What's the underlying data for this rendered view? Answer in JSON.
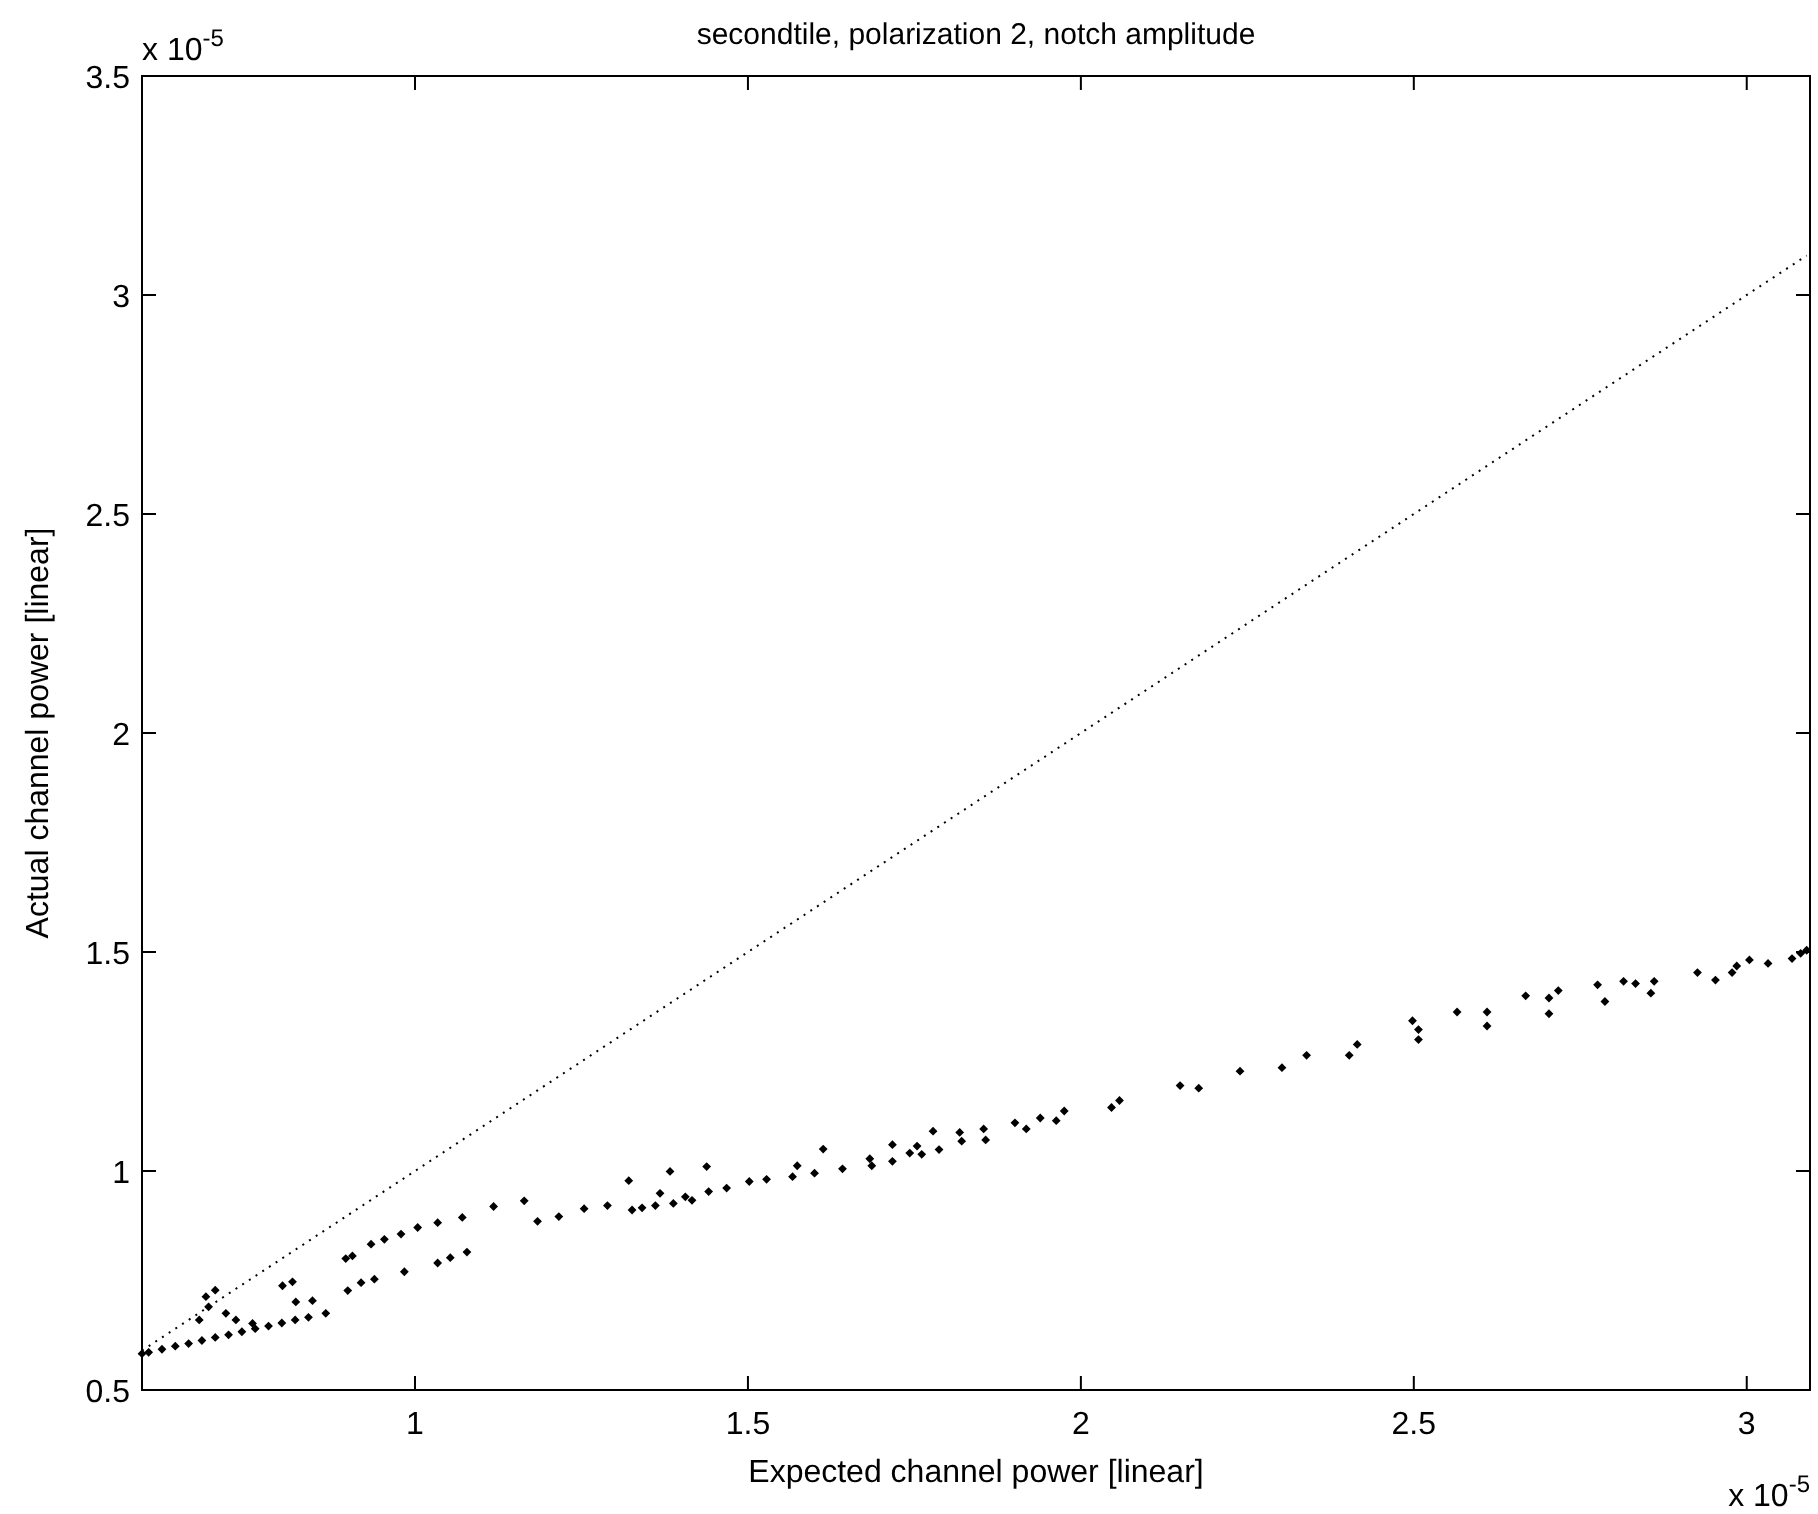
{
  "chart_data": {
    "type": "scatter",
    "title": "secondtile, polarization 2, notch amplitude",
    "xlabel": "Expected channel power [linear]",
    "ylabel": "Actual channel power [linear]",
    "annotations": [
      "x 10$^{-5}$",
      "x 10$^{-5}$"
    ],
    "xlim": [
      0.59,
      3.095
    ],
    "xticks": [
      1,
      1.5,
      2,
      2.5,
      3
    ],
    "ylim": [
      0.5,
      3.5
    ],
    "yticks": [
      0.5,
      1,
      1.5,
      2,
      2.5,
      3,
      3.5
    ],
    "grid": false,
    "series": [
      {
        "color": "#000000",
        "marker": "diamond",
        "x": [
          0.59,
          0.6,
          0.62,
          0.64,
          0.66,
          0.68,
          0.7,
          0.72,
          0.74,
          0.76,
          0.78,
          0.8,
          0.82,
          0.84,
          0.866,
          0.676,
          0.686,
          0.69,
          0.7,
          0.716,
          0.731,
          0.756,
          0.801,
          0.816,
          0.821,
          0.846,
          0.899,
          0.919,
          0.939,
          0.896,
          0.906,
          0.934,
          0.954,
          0.979,
          1.004,
          1.034,
          1.071,
          0.984,
          1.034,
          1.053,
          1.078,
          1.118,
          1.164,
          1.184,
          1.216,
          1.254,
          1.289,
          1.321,
          1.326,
          1.341,
          1.361,
          1.368,
          1.383,
          1.388,
          1.406,
          1.416,
          1.438,
          1.441,
          1.468,
          1.502,
          1.528,
          1.567,
          1.574,
          1.6,
          1.613,
          1.642,
          1.683,
          1.686,
          1.717,
          1.717,
          1.743,
          1.754,
          1.761,
          1.778,
          1.787,
          1.818,
          1.821,
          1.854,
          1.857,
          1.901,
          1.918,
          1.939,
          1.963,
          1.975,
          2.046,
          2.058,
          2.149,
          2.177,
          2.239,
          2.302,
          2.339,
          2.403,
          2.415,
          2.498,
          2.507,
          2.507,
          2.565,
          2.61,
          2.61,
          2.668,
          2.703,
          2.703,
          2.717,
          2.776,
          2.787,
          2.815,
          2.833,
          2.856,
          2.861,
          2.926,
          2.953,
          2.978,
          2.985,
          3.004,
          3.032,
          3.068,
          3.081,
          3.09
        ],
        "values": [
          0.583,
          0.586,
          0.593,
          0.6,
          0.606,
          0.613,
          0.62,
          0.626,
          0.633,
          0.64,
          0.646,
          0.653,
          0.66,
          0.666,
          0.675,
          0.66,
          0.713,
          0.69,
          0.728,
          0.675,
          0.66,
          0.652,
          0.738,
          0.747,
          0.701,
          0.704,
          0.727,
          0.745,
          0.753,
          0.8,
          0.806,
          0.833,
          0.844,
          0.856,
          0.871,
          0.882,
          0.894,
          0.77,
          0.79,
          0.802,
          0.815,
          0.919,
          0.932,
          0.885,
          0.896,
          0.914,
          0.921,
          0.978,
          0.911,
          0.916,
          0.921,
          0.949,
          0.999,
          0.926,
          0.941,
          0.933,
          1.01,
          0.953,
          0.961,
          0.976,
          0.981,
          0.987,
          1.012,
          0.995,
          1.05,
          1.005,
          1.028,
          1.012,
          1.06,
          1.022,
          1.041,
          1.057,
          1.038,
          1.091,
          1.049,
          1.088,
          1.068,
          1.096,
          1.071,
          1.11,
          1.096,
          1.121,
          1.115,
          1.137,
          1.145,
          1.161,
          1.195,
          1.189,
          1.228,
          1.236,
          1.264,
          1.264,
          1.289,
          1.343,
          1.323,
          1.3,
          1.363,
          1.363,
          1.331,
          1.4,
          1.395,
          1.359,
          1.412,
          1.425,
          1.387,
          1.433,
          1.428,
          1.406,
          1.433,
          1.453,
          1.436,
          1.453,
          1.468,
          1.482,
          1.474,
          1.485,
          1.497,
          1.504
        ]
      },
      {
        "type": "line",
        "color": "#000000",
        "line_style": "dotted",
        "marker": "none",
        "x": [
          0.59,
          3.09
        ],
        "values": [
          0.59,
          3.09
        ]
      }
    ]
  }
}
